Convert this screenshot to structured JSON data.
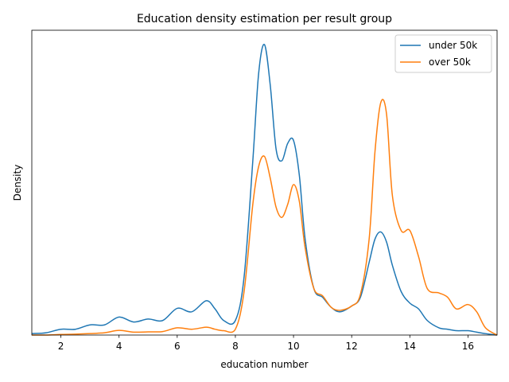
{
  "chart_data": {
    "type": "line",
    "title": "Education density estimation per result group",
    "xlabel": "education number",
    "ylabel": "Density",
    "xlim": [
      1,
      17
    ],
    "ylim": [
      0,
      1
    ],
    "x_ticks": [
      2,
      4,
      6,
      8,
      10,
      12,
      14,
      16
    ],
    "y_ticks_shown": false,
    "grid": false,
    "legend_position": "top-right",
    "x": [
      1,
      1.5,
      2,
      2.5,
      3,
      3.5,
      4,
      4.5,
      5,
      5.5,
      6,
      6.5,
      7,
      7.3,
      7.6,
      8,
      8.3,
      8.6,
      8.8,
      9,
      9.2,
      9.4,
      9.6,
      9.8,
      10,
      10.2,
      10.4,
      10.7,
      11,
      11.3,
      11.6,
      12,
      12.3,
      12.6,
      12.8,
      13,
      13.2,
      13.4,
      13.7,
      14,
      14.3,
      14.6,
      15,
      15.3,
      15.6,
      16,
      16.3,
      16.6,
      17
    ],
    "series": [
      {
        "name": "under 50k",
        "color": "#1f77b4",
        "values": [
          0.005,
          0.008,
          0.02,
          0.02,
          0.035,
          0.035,
          0.062,
          0.045,
          0.055,
          0.05,
          0.092,
          0.08,
          0.118,
          0.09,
          0.05,
          0.05,
          0.2,
          0.6,
          0.9,
          1.0,
          0.86,
          0.64,
          0.6,
          0.66,
          0.67,
          0.55,
          0.33,
          0.16,
          0.13,
          0.095,
          0.08,
          0.1,
          0.13,
          0.25,
          0.33,
          0.355,
          0.32,
          0.24,
          0.15,
          0.11,
          0.09,
          0.05,
          0.025,
          0.02,
          0.015,
          0.015,
          0.01,
          0.005,
          0.0
        ]
      },
      {
        "name": "over 50k",
        "color": "#ff7f0e",
        "values": [
          0.0,
          0.0,
          0.002,
          0.003,
          0.005,
          0.008,
          0.016,
          0.01,
          0.011,
          0.012,
          0.025,
          0.02,
          0.027,
          0.02,
          0.015,
          0.02,
          0.15,
          0.45,
          0.58,
          0.615,
          0.54,
          0.44,
          0.405,
          0.45,
          0.518,
          0.46,
          0.3,
          0.16,
          0.135,
          0.095,
          0.085,
          0.1,
          0.14,
          0.33,
          0.63,
          0.8,
          0.76,
          0.48,
          0.36,
          0.36,
          0.27,
          0.16,
          0.145,
          0.13,
          0.09,
          0.105,
          0.08,
          0.025,
          0.0
        ]
      }
    ]
  }
}
